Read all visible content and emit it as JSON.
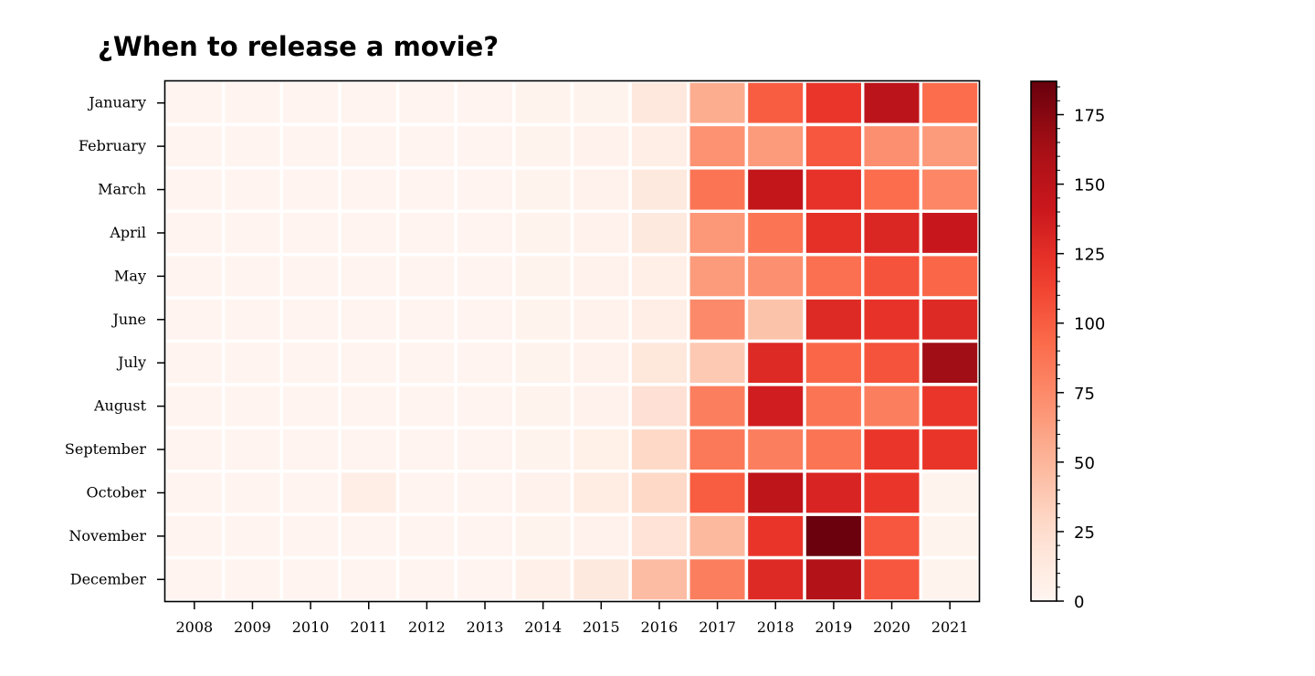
{
  "chart_data": {
    "type": "heatmap",
    "title": "¿When to release a movie?",
    "xlabel": "",
    "ylabel": "",
    "x": [
      "2008",
      "2009",
      "2010",
      "2011",
      "2012",
      "2013",
      "2014",
      "2015",
      "2016",
      "2017",
      "2018",
      "2019",
      "2020",
      "2021"
    ],
    "y": [
      "January",
      "February",
      "March",
      "April",
      "May",
      "June",
      "July",
      "August",
      "September",
      "October",
      "November",
      "December"
    ],
    "values": [
      [
        1,
        1,
        1,
        1,
        1,
        1,
        2,
        2,
        15,
        55,
        100,
        120,
        150,
        92
      ],
      [
        1,
        1,
        1,
        1,
        1,
        1,
        2,
        3,
        8,
        70,
        65,
        103,
        72,
        65
      ],
      [
        1,
        1,
        1,
        1,
        1,
        1,
        2,
        4,
        13,
        87,
        145,
        123,
        92,
        77
      ],
      [
        1,
        1,
        1,
        1,
        1,
        1,
        2,
        3,
        13,
        67,
        87,
        124,
        130,
        142
      ],
      [
        1,
        1,
        1,
        1,
        1,
        1,
        2,
        4,
        7,
        65,
        72,
        90,
        105,
        95
      ],
      [
        1,
        1,
        1,
        1,
        1,
        1,
        2,
        3,
        8,
        75,
        42,
        128,
        123,
        128
      ],
      [
        1,
        1,
        1,
        1,
        1,
        1,
        2,
        4,
        16,
        38,
        128,
        95,
        105,
        165
      ],
      [
        1,
        1,
        1,
        1,
        1,
        1,
        2,
        3,
        22,
        82,
        137,
        87,
        82,
        120
      ],
      [
        1,
        1,
        1,
        1,
        1,
        1,
        2,
        6,
        28,
        85,
        82,
        87,
        120,
        121
      ],
      [
        1,
        1,
        1,
        8,
        1,
        1,
        4,
        10,
        28,
        100,
        148,
        132,
        120,
        2
      ],
      [
        1,
        1,
        1,
        1,
        1,
        1,
        2,
        3,
        20,
        48,
        121,
        186,
        103,
        2
      ],
      [
        1,
        1,
        1,
        1,
        1,
        1,
        5,
        13,
        46,
        82,
        128,
        155,
        103,
        2
      ]
    ],
    "colorbar": {
      "min": 0,
      "max": 187,
      "ticks": [
        0,
        25,
        50,
        75,
        100,
        125,
        150,
        175
      ],
      "colormap": "Reds"
    },
    "grid": false,
    "legend": "none"
  }
}
